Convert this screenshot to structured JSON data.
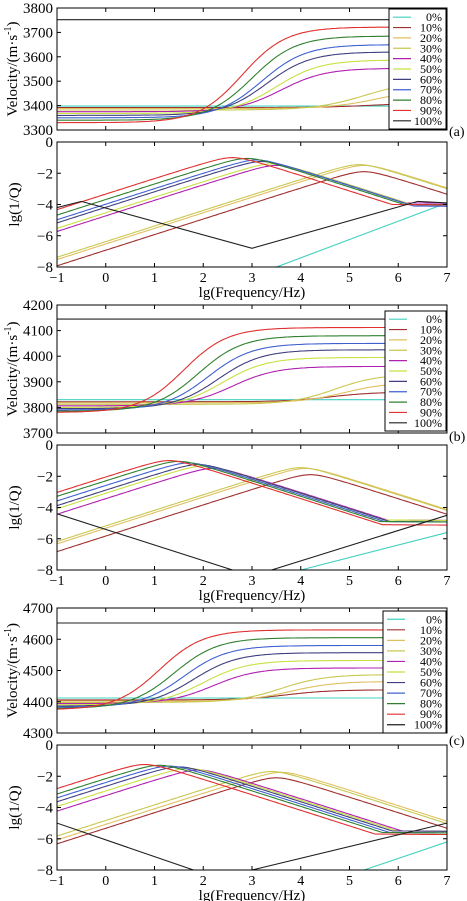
{
  "colors": {
    "0%": "#40d0c0",
    "10%": "#a03030",
    "20%": "#e0c060",
    "30%": "#c8c850",
    "40%": "#b020b0",
    "50%": "#c8e040",
    "60%": "#404080",
    "70%": "#4060d0",
    "80%": "#308030",
    "90%": "#e03030",
    "100%": "#202020"
  },
  "legend_labels": [
    "0%",
    "10%",
    "20%",
    "30%",
    "40%",
    "50%",
    "60%",
    "70%",
    "80%",
    "90%",
    "100%"
  ],
  "chart_data": [
    {
      "id": "a-velocity",
      "type": "line",
      "panel_label": "(a)",
      "ylabel": "Velocity/(m·s⁻¹)",
      "xlabel": "",
      "xlim": [
        -1,
        7
      ],
      "ylim": [
        3300,
        3800
      ],
      "yticks": [
        3300,
        3400,
        3500,
        3600,
        3700,
        3800
      ],
      "xticks": [],
      "legend": "top-right",
      "series": [
        {
          "name": "0%",
          "v0": 3398,
          "v1": 3398,
          "fc": 3.0,
          "w": 0.5
        },
        {
          "name": "10%",
          "v0": 3392,
          "v1": 3410,
          "fc": 5.4,
          "w": 0.5
        },
        {
          "name": "20%",
          "v0": 3388,
          "v1": 3470,
          "fc": 5.6,
          "w": 0.5
        },
        {
          "name": "30%",
          "v0": 3382,
          "v1": 3500,
          "fc": 5.3,
          "w": 0.5
        },
        {
          "name": "40%",
          "v0": 3375,
          "v1": 3553,
          "fc": 3.6,
          "w": 0.45
        },
        {
          "name": "50%",
          "v0": 3368,
          "v1": 3587,
          "fc": 3.5,
          "w": 0.45
        },
        {
          "name": "60%",
          "v0": 3360,
          "v1": 3620,
          "fc": 3.3,
          "w": 0.45
        },
        {
          "name": "70%",
          "v0": 3350,
          "v1": 3650,
          "fc": 3.2,
          "w": 0.45
        },
        {
          "name": "80%",
          "v0": 3340,
          "v1": 3685,
          "fc": 3.0,
          "w": 0.45
        },
        {
          "name": "90%",
          "v0": 3330,
          "v1": 3722,
          "fc": 2.8,
          "w": 0.45
        },
        {
          "name": "100%",
          "v0": 3752,
          "v1": 3752,
          "fc": 3.0,
          "w": 0.5
        }
      ]
    },
    {
      "id": "a-attenuation",
      "type": "line",
      "panel_label": "",
      "ylabel": "lg(1/Q)",
      "xlabel": "lg(Frequency/Hz)",
      "xlim": [
        -1,
        7
      ],
      "ylim": [
        -8,
        0
      ],
      "yticks": [
        -8,
        -6,
        -4,
        -2,
        0
      ],
      "xticks": [
        -1,
        0,
        1,
        2,
        3,
        4,
        5,
        6,
        7
      ],
      "series": [
        {
          "name": "0%",
          "kind": "line",
          "x": [
            3.5,
            7
          ],
          "y": [
            -8,
            -3.9
          ]
        },
        {
          "name": "10%",
          "kind": "peak",
          "xp": 5.3,
          "yp": -1.9,
          "floor": -4.0
        },
        {
          "name": "20%",
          "kind": "peak",
          "xp": 5.3,
          "yp": -1.5,
          "floor": -3.8
        },
        {
          "name": "30%",
          "kind": "peak",
          "xp": 5.2,
          "yp": -1.45,
          "floor": -3.9
        },
        {
          "name": "40%",
          "kind": "peak",
          "xp": 3.5,
          "yp": -1.5,
          "floor": -3.9
        },
        {
          "name": "50%",
          "kind": "peak",
          "xp": 3.4,
          "yp": -1.4,
          "floor": -4.0
        },
        {
          "name": "60%",
          "kind": "peak",
          "xp": 3.2,
          "yp": -1.25,
          "floor": -4.0
        },
        {
          "name": "70%",
          "kind": "peak",
          "xp": 3.1,
          "yp": -1.15,
          "floor": -4.1
        },
        {
          "name": "80%",
          "kind": "peak",
          "xp": 2.9,
          "yp": -1.05,
          "floor": -4.0
        },
        {
          "name": "90%",
          "kind": "peak",
          "xp": 2.6,
          "yp": -1.0,
          "floor": -4.0
        },
        {
          "name": "100%",
          "kind": "valley",
          "x": [
            -1,
            -0.5,
            3.0,
            6.4,
            7
          ],
          "y": [
            -4.2,
            -3.8,
            -6.8,
            -3.8,
            -3.9
          ]
        }
      ]
    },
    {
      "id": "b-velocity",
      "type": "line",
      "panel_label": "(b)",
      "ylabel": "Velocity/(m·s⁻¹)",
      "xlabel": "",
      "xlim": [
        -1,
        7
      ],
      "ylim": [
        3700,
        4200
      ],
      "yticks": [
        3700,
        3800,
        3900,
        4000,
        4100,
        4200
      ],
      "xticks": [],
      "legend": "top-right",
      "series": [
        {
          "name": "0%",
          "v0": 3830,
          "v1": 3830,
          "fc": 3.0,
          "w": 0.5
        },
        {
          "name": "10%",
          "v0": 3822,
          "v1": 3860,
          "fc": 4.6,
          "w": 0.45
        },
        {
          "name": "20%",
          "v0": 3818,
          "v1": 3898,
          "fc": 4.9,
          "w": 0.45
        },
        {
          "name": "30%",
          "v0": 3812,
          "v1": 3930,
          "fc": 4.7,
          "w": 0.45
        },
        {
          "name": "40%",
          "v0": 3806,
          "v1": 3960,
          "fc": 2.6,
          "w": 0.45
        },
        {
          "name": "50%",
          "v0": 3800,
          "v1": 3995,
          "fc": 2.4,
          "w": 0.45
        },
        {
          "name": "60%",
          "v0": 3795,
          "v1": 4025,
          "fc": 2.3,
          "w": 0.45
        },
        {
          "name": "70%",
          "v0": 3790,
          "v1": 4050,
          "fc": 2.1,
          "w": 0.45
        },
        {
          "name": "80%",
          "v0": 3785,
          "v1": 4080,
          "fc": 1.9,
          "w": 0.45
        },
        {
          "name": "90%",
          "v0": 3780,
          "v1": 4112,
          "fc": 1.6,
          "w": 0.45
        },
        {
          "name": "100%",
          "v0": 4145,
          "v1": 4145,
          "fc": 3.0,
          "w": 0.5
        }
      ]
    },
    {
      "id": "b-attenuation",
      "type": "line",
      "panel_label": "",
      "ylabel": "lg(1/Q)",
      "xlabel": "lg(Frequency/Hz)",
      "xlim": [
        -1,
        7
      ],
      "ylim": [
        -8,
        0
      ],
      "yticks": [
        -8,
        -6,
        -4,
        -2,
        0
      ],
      "xticks": [
        -1,
        0,
        1,
        2,
        3,
        4,
        5,
        6,
        7
      ],
      "series": [
        {
          "name": "0%",
          "kind": "line",
          "x": [
            4.0,
            7
          ],
          "y": [
            -8,
            -5.6
          ]
        },
        {
          "name": "10%",
          "kind": "peak",
          "xp": 4.2,
          "yp": -1.9,
          "floor": -5.0
        },
        {
          "name": "20%",
          "kind": "peak",
          "xp": 4.1,
          "yp": -1.5,
          "floor": -4.6
        },
        {
          "name": "30%",
          "kind": "peak",
          "xp": 4.0,
          "yp": -1.45,
          "floor": -4.5
        },
        {
          "name": "40%",
          "kind": "peak",
          "xp": 2.2,
          "yp": -1.5,
          "floor": -4.8
        },
        {
          "name": "50%",
          "kind": "peak",
          "xp": 2.0,
          "yp": -1.35,
          "floor": -4.8
        },
        {
          "name": "60%",
          "kind": "peak",
          "xp": 1.9,
          "yp": -1.25,
          "floor": -4.9
        },
        {
          "name": "70%",
          "kind": "peak",
          "xp": 1.7,
          "yp": -1.15,
          "floor": -4.9
        },
        {
          "name": "80%",
          "kind": "peak",
          "xp": 1.5,
          "yp": -1.05,
          "floor": -4.9
        },
        {
          "name": "90%",
          "kind": "peak",
          "xp": 1.3,
          "yp": -1.0,
          "floor": -5.1
        },
        {
          "name": "100%",
          "kind": "valley",
          "x": [
            -1,
            2.6,
            3.4,
            7
          ],
          "y": [
            -4.4,
            -8,
            -8,
            -4.5
          ]
        }
      ]
    },
    {
      "id": "c-velocity",
      "type": "line",
      "panel_label": "(c)",
      "ylabel": "Velocity/(m·s⁻¹)",
      "xlabel": "",
      "xlim": [
        -1,
        7
      ],
      "ylim": [
        4300,
        4700
      ],
      "yticks": [
        4300,
        4400,
        4500,
        4600,
        4700
      ],
      "xticks": [],
      "legend": "top-right",
      "series": [
        {
          "name": "0%",
          "v0": 4412,
          "v1": 4412,
          "fc": 3.0,
          "w": 0.5
        },
        {
          "name": "10%",
          "v0": 4406,
          "v1": 4438,
          "fc": 3.7,
          "w": 0.45
        },
        {
          "name": "20%",
          "v0": 4402,
          "v1": 4465,
          "fc": 3.8,
          "w": 0.45
        },
        {
          "name": "30%",
          "v0": 4398,
          "v1": 4487,
          "fc": 3.6,
          "w": 0.45
        },
        {
          "name": "40%",
          "v0": 4394,
          "v1": 4508,
          "fc": 2.2,
          "w": 0.45
        },
        {
          "name": "50%",
          "v0": 4390,
          "v1": 4532,
          "fc": 2.0,
          "w": 0.45
        },
        {
          "name": "60%",
          "v0": 4386,
          "v1": 4557,
          "fc": 1.8,
          "w": 0.45
        },
        {
          "name": "70%",
          "v0": 4382,
          "v1": 4580,
          "fc": 1.6,
          "w": 0.45
        },
        {
          "name": "80%",
          "v0": 4378,
          "v1": 4605,
          "fc": 1.4,
          "w": 0.45
        },
        {
          "name": "90%",
          "v0": 4374,
          "v1": 4630,
          "fc": 1.1,
          "w": 0.45
        },
        {
          "name": "100%",
          "v0": 4652,
          "v1": 4652,
          "fc": 3.0,
          "w": 0.5
        }
      ]
    },
    {
      "id": "c-attenuation",
      "type": "line",
      "panel_label": "",
      "ylabel": "lg(1/Q)",
      "xlabel": "lg(Frequency/Hz)",
      "xlim": [
        -1,
        7
      ],
      "ylim": [
        -8,
        0
      ],
      "yticks": [
        -8,
        -6,
        -4,
        -2,
        0
      ],
      "xticks": [
        -1,
        0,
        1,
        2,
        3,
        4,
        5,
        6,
        7
      ],
      "series": [
        {
          "name": "0%",
          "kind": "line",
          "x": [
            5.3,
            7
          ],
          "y": [
            -8,
            -6.2
          ]
        },
        {
          "name": "10%",
          "kind": "peak",
          "xp": 3.5,
          "yp": -2.1,
          "floor": -5.7
        },
        {
          "name": "20%",
          "kind": "peak",
          "xp": 3.6,
          "yp": -1.75,
          "floor": -5.2
        },
        {
          "name": "30%",
          "kind": "peak",
          "xp": 3.4,
          "yp": -1.7,
          "floor": -5.2
        },
        {
          "name": "40%",
          "kind": "peak",
          "xp": 1.9,
          "yp": -1.6,
          "floor": -5.5
        },
        {
          "name": "50%",
          "kind": "peak",
          "xp": 1.7,
          "yp": -1.5,
          "floor": -5.5
        },
        {
          "name": "60%",
          "kind": "peak",
          "xp": 1.5,
          "yp": -1.4,
          "floor": -5.5
        },
        {
          "name": "70%",
          "kind": "peak",
          "xp": 1.3,
          "yp": -1.35,
          "floor": -5.6
        },
        {
          "name": "80%",
          "kind": "peak",
          "xp": 1.1,
          "yp": -1.3,
          "floor": -5.6
        },
        {
          "name": "90%",
          "kind": "peak",
          "xp": 0.8,
          "yp": -1.25,
          "floor": -5.7
        },
        {
          "name": "100%",
          "kind": "valley",
          "x": [
            -1,
            1.8,
            3.0,
            7
          ],
          "y": [
            -5.0,
            -8,
            -8,
            -5.0
          ]
        }
      ]
    }
  ]
}
